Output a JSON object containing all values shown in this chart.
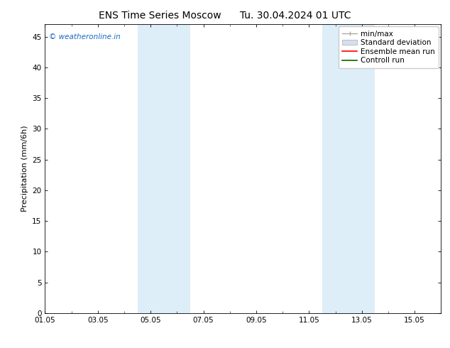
{
  "title_left": "ENS Time Series Moscow",
  "title_right": "Tu. 30.04.2024 01 UTC",
  "ylabel": "Precipitation (mm/6h)",
  "ylim": [
    0,
    47
  ],
  "yticks": [
    0,
    5,
    10,
    15,
    20,
    25,
    30,
    35,
    40,
    45
  ],
  "xlim": [
    0,
    15
  ],
  "xtick_labels": [
    "01.05",
    "03.05",
    "05.05",
    "07.05",
    "09.05",
    "11.05",
    "13.05",
    "15.05"
  ],
  "xtick_positions": [
    0,
    2,
    4,
    6,
    8,
    10,
    12,
    14
  ],
  "shaded_bands": [
    {
      "x_start": 3.5,
      "x_end": 5.5
    },
    {
      "x_start": 10.5,
      "x_end": 12.5
    }
  ],
  "shade_color": "#ddeef8",
  "background_color": "#ffffff",
  "watermark_text": "© weatheronline.in",
  "watermark_color": "#1a6abf",
  "legend_entries": [
    {
      "label": "min/max",
      "color": "#aaaaaa"
    },
    {
      "label": "Standard deviation",
      "color": "#d0d8e8"
    },
    {
      "label": "Ensemble mean run",
      "color": "#ff0000"
    },
    {
      "label": "Controll run",
      "color": "#008000"
    }
  ],
  "title_fontsize": 10,
  "ylabel_fontsize": 8,
  "tick_fontsize": 7.5,
  "legend_fontsize": 7.5
}
